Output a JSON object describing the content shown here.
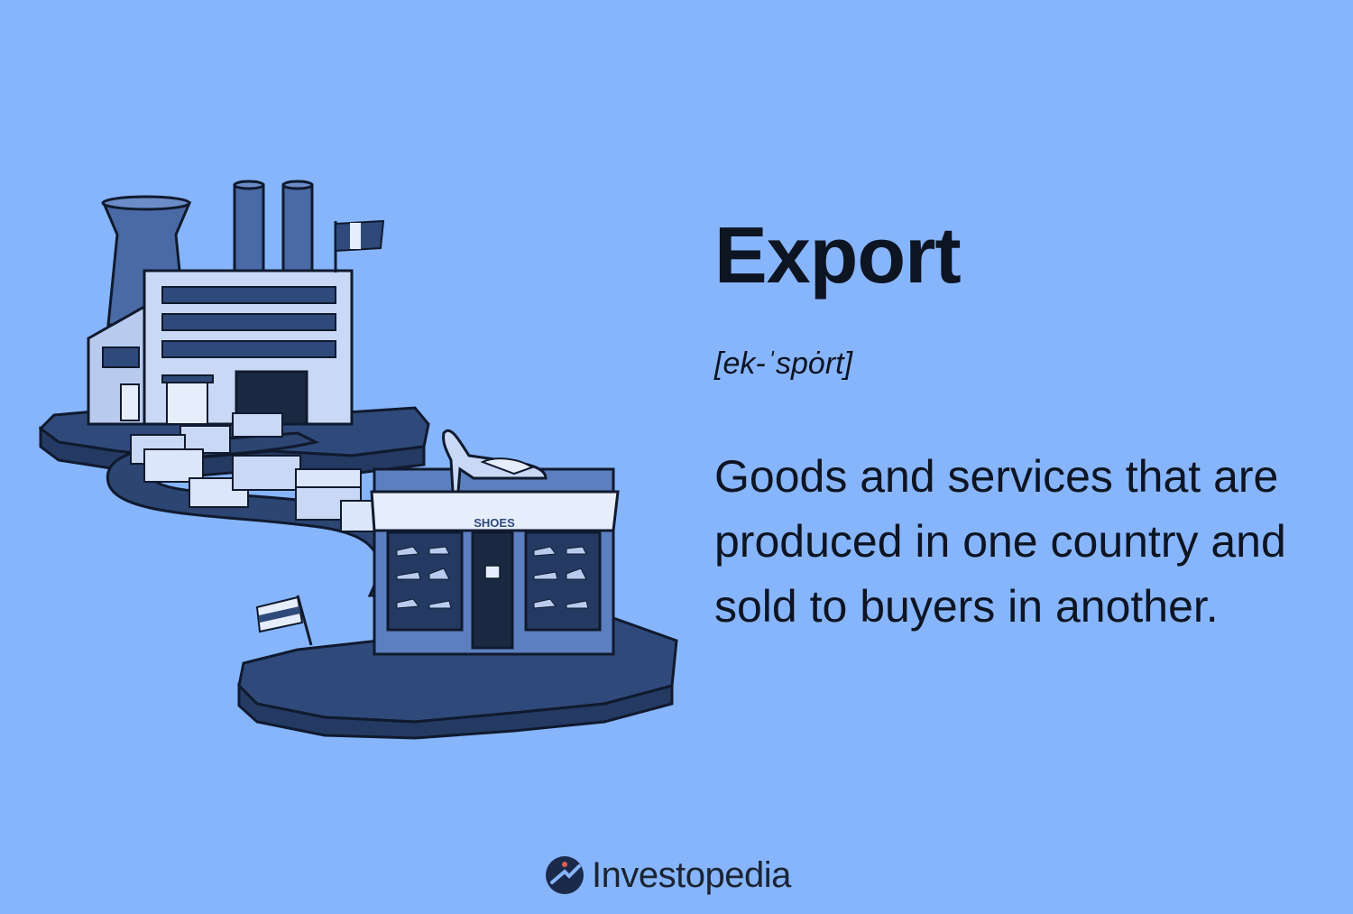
{
  "definition_card": {
    "term": "Export",
    "pronunciation": "[ek-ˈspȯrt]",
    "definition": "Goods and services that are produced in one country and sold to buyers in another."
  },
  "illustration": {
    "store_sign": "SHOES"
  },
  "brand": {
    "name": "Investopedia"
  },
  "colors": {
    "background": "#87b5fb",
    "text": "#0d1422",
    "illustration_dark": "#2f4a7a",
    "illustration_mid": "#5c7fbf",
    "illustration_light": "#c9d8f5"
  }
}
